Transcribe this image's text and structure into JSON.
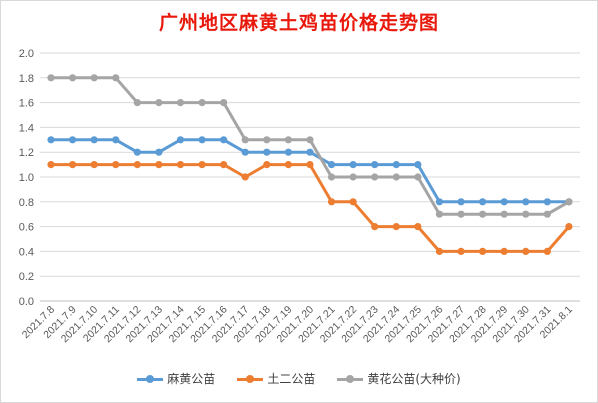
{
  "chart_data": {
    "type": "line",
    "title": "广州地区麻黄土鸡苗价格走势图",
    "categories": [
      "2021.7.8",
      "2021.7.9",
      "2021.7.10",
      "2021.7.11",
      "2021.7.12",
      "2021.7.13",
      "2021.7.14",
      "2021.7.15",
      "2021.7.16",
      "2021.7.17",
      "2021.7.18",
      "2021.7.19",
      "2021.7.20",
      "2021.7.21",
      "2021.7.22",
      "2021.7.23",
      "2021.7.24",
      "2021.7.25",
      "2021.7.26",
      "2021.7.27",
      "2021.7.28",
      "2021.7.29",
      "2021.7.30",
      "2021.7.31",
      "2021.8.1"
    ],
    "ylim": [
      0,
      2.0
    ],
    "yticks": [
      "0.0",
      "0.2",
      "0.4",
      "0.6",
      "0.8",
      "1.0",
      "1.2",
      "1.4",
      "1.6",
      "1.8",
      "2.0"
    ],
    "grid": true,
    "legend_position": "bottom",
    "series": [
      {
        "name": "麻黄公苗",
        "color": "#5b9bd5",
        "values": [
          1.3,
          1.3,
          1.3,
          1.3,
          1.2,
          1.2,
          1.3,
          1.3,
          1.3,
          1.2,
          1.2,
          1.2,
          1.2,
          1.1,
          1.1,
          1.1,
          1.1,
          1.1,
          0.8,
          0.8,
          0.8,
          0.8,
          0.8,
          0.8,
          0.8
        ]
      },
      {
        "name": "土二公苗",
        "color": "#ed7d31",
        "values": [
          1.1,
          1.1,
          1.1,
          1.1,
          1.1,
          1.1,
          1.1,
          1.1,
          1.1,
          1.0,
          1.1,
          1.1,
          1.1,
          0.8,
          0.8,
          0.6,
          0.6,
          0.6,
          0.4,
          0.4,
          0.4,
          0.4,
          0.4,
          0.4,
          0.6
        ]
      },
      {
        "name": "黄花公苗(大种价)",
        "color": "#a5a5a5",
        "values": [
          1.8,
          1.8,
          1.8,
          1.8,
          1.6,
          1.6,
          1.6,
          1.6,
          1.6,
          1.3,
          1.3,
          1.3,
          1.3,
          1.0,
          1.0,
          1.0,
          1.0,
          1.0,
          0.7,
          0.7,
          0.7,
          0.7,
          0.7,
          0.7,
          0.8
        ]
      }
    ]
  }
}
